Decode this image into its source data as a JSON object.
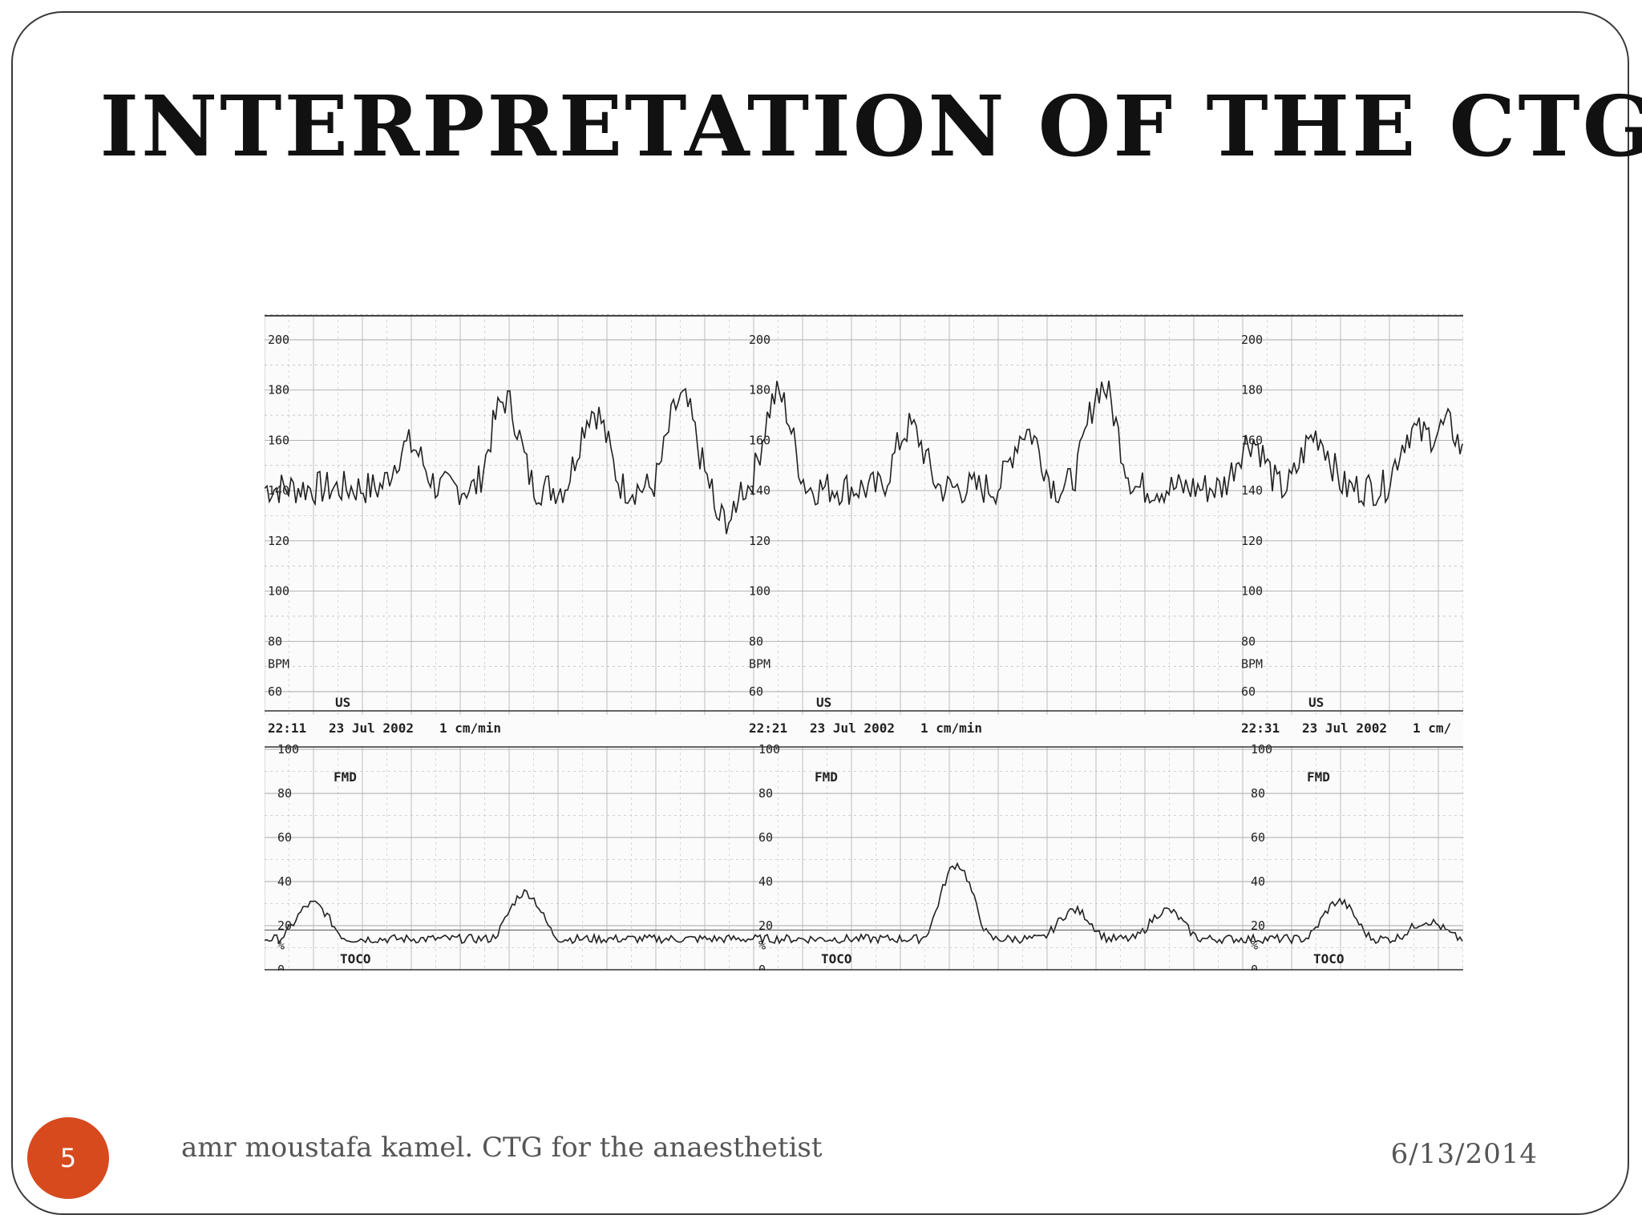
{
  "slide": {
    "title": "Interpretation of the CTG",
    "number": "5",
    "footer": "amr moustafa kamel. CTG for the anaesthetist",
    "date": "6/13/2014",
    "accent_color": "#d64a1e"
  },
  "ctg_strip": {
    "fhr_ticks": [
      "200",
      "180",
      "160",
      "140",
      "120",
      "100",
      "80",
      "60"
    ],
    "fhr_unit": "BPM",
    "transducer_fhr": "US",
    "toco_ticks": [
      "100",
      "80",
      "60",
      "40",
      "20",
      "0"
    ],
    "toco_unit": "%",
    "transducer_toco": "TOCO",
    "fmd_label": "FMD",
    "segments": [
      {
        "time": "22:11",
        "date": "23 Jul 2002",
        "speed": "1 cm/min"
      },
      {
        "time": "22:21",
        "date": "23 Jul 2002",
        "speed": "1 cm/min"
      },
      {
        "time": "22:31",
        "date": "23 Jul 2002",
        "speed": "1 cm/"
      }
    ]
  }
}
